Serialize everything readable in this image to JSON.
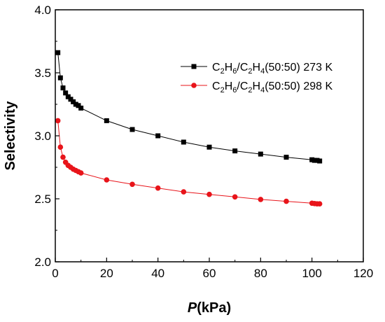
{
  "chart_data": {
    "type": "line",
    "xlabel_italic": "P",
    "xlabel_unit": "(kPa)",
    "ylabel": "Selectivity",
    "xlim": [
      0,
      120
    ],
    "ylim": [
      2.0,
      4.0
    ],
    "x_ticks": [
      "0",
      "20",
      "40",
      "60",
      "80",
      "100",
      "120"
    ],
    "y_ticks": [
      "2.0",
      "2.5",
      "3.0",
      "3.5",
      "4.0"
    ],
    "grid": false,
    "legend_position": "top-right",
    "series": [
      {
        "name_parts": [
          "C",
          "2",
          "H",
          "6",
          "/C",
          "2",
          "H",
          "4",
          "(50:50) 273 K"
        ],
        "color": "#000000",
        "marker": "square",
        "x": [
          1,
          2,
          3,
          4,
          5,
          6,
          7,
          8,
          9,
          10,
          20,
          30,
          40,
          50,
          60,
          70,
          80,
          90,
          100,
          101,
          102,
          103
        ],
        "y": [
          3.66,
          3.46,
          3.38,
          3.34,
          3.31,
          3.29,
          3.27,
          3.25,
          3.24,
          3.22,
          3.12,
          3.05,
          3.0,
          2.95,
          2.91,
          2.88,
          2.855,
          2.83,
          2.81,
          2.805,
          2.805,
          2.8
        ]
      },
      {
        "name_parts": [
          "C",
          "2",
          "H",
          "6",
          "/C",
          "2",
          "H",
          "4",
          "(50:50) 298 K"
        ],
        "color": "#e8141a",
        "marker": "circle",
        "x": [
          1,
          2,
          3,
          4,
          5,
          6,
          7,
          8,
          9,
          10,
          20,
          30,
          40,
          50,
          60,
          70,
          80,
          90,
          100,
          101,
          102,
          103
        ],
        "y": [
          3.12,
          2.91,
          2.83,
          2.79,
          2.765,
          2.75,
          2.735,
          2.725,
          2.715,
          2.705,
          2.65,
          2.615,
          2.585,
          2.555,
          2.535,
          2.515,
          2.495,
          2.48,
          2.465,
          2.462,
          2.46,
          2.46
        ]
      }
    ]
  }
}
